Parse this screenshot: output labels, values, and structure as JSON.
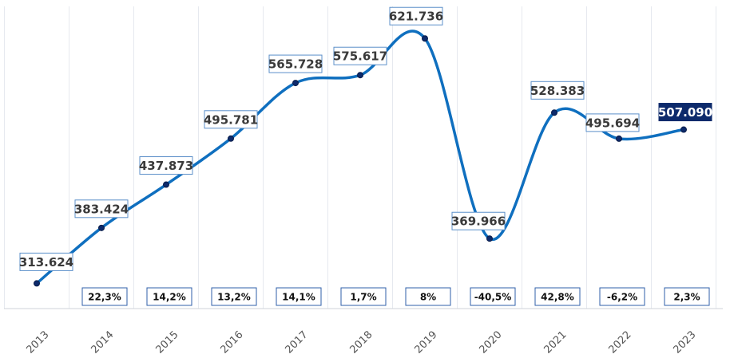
{
  "chart_data": {
    "type": "line",
    "x": [
      "2013",
      "2014",
      "2015",
      "2016",
      "2017",
      "2018",
      "2019",
      "2020",
      "2021",
      "2022",
      "2023"
    ],
    "values": [
      313624,
      383424,
      437873,
      495781,
      565728,
      575617,
      621736,
      369966,
      528383,
      495694,
      507090
    ],
    "value_labels": [
      "313.624",
      "383.424",
      "437.873",
      "495.781",
      "565.728",
      "575.617",
      "621.736",
      "369.966",
      "528.383",
      "495.694",
      "507.090"
    ],
    "growth_labels": [
      "",
      "22,3%",
      "14,2%",
      "13,2%",
      "14,1%",
      "1,7%",
      "8%",
      "-40,5%",
      "42,8%",
      "-6,2%",
      "2,3%"
    ],
    "ylim": [
      300000,
      650000
    ],
    "grid": "vertical",
    "line_color": "#0f6fbf",
    "marker_color": "#0d2a6b",
    "highlight_color": "#0d2a6b",
    "highlight_index": 10,
    "title": "",
    "xlabel": "",
    "ylabel": ""
  }
}
